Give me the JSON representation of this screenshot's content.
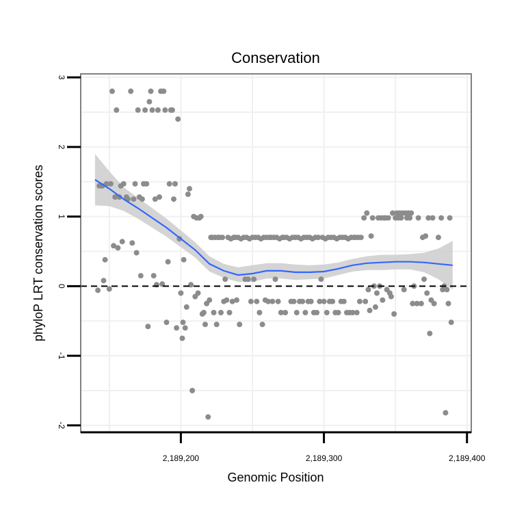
{
  "chart_data": {
    "type": "scatter",
    "title": "Conservation",
    "xlabel": "Genomic Position",
    "ylabel": "phyloP LRT conservation scores",
    "xlim": [
      2189130,
      2189403
    ],
    "ylim": [
      -2.1,
      3.05
    ],
    "x_ticks": [
      {
        "value": 2189200,
        "label": "2,189,200"
      },
      {
        "value": 2189300,
        "label": "2,189,300"
      },
      {
        "value": 2189400,
        "label": "2,189,400"
      }
    ],
    "y_ticks": [
      {
        "value": -2,
        "label": "-2"
      },
      {
        "value": -1,
        "label": "-1"
      },
      {
        "value": 0,
        "label": "0"
      },
      {
        "value": 1,
        "label": "1"
      },
      {
        "value": 2,
        "label": "2"
      },
      {
        "value": 3,
        "label": "3"
      }
    ],
    "reference_line": {
      "y": 0,
      "style": "dashed"
    },
    "colors": {
      "points": "#8c8c8c",
      "smooth": "#3366ff",
      "ribbon": "#cccccc",
      "grid": "#f0f0f0",
      "border": "#808080"
    },
    "series": [
      {
        "name": "scores",
        "points": [
          [
            2189142,
            -0.06
          ],
          [
            2189143,
            1.44
          ],
          [
            2189145,
            1.44
          ],
          [
            2189146,
            0.08
          ],
          [
            2189147,
            0.38
          ],
          [
            2189148,
            1.47
          ],
          [
            2189150,
            -0.04
          ],
          [
            2189151,
            1.47
          ],
          [
            2189152,
            2.8
          ],
          [
            2189153,
            0.58
          ],
          [
            2189154,
            1.28
          ],
          [
            2189155,
            2.53
          ],
          [
            2189156,
            0.55
          ],
          [
            2189157,
            1.28
          ],
          [
            2189158,
            1.44
          ],
          [
            2189159,
            0.64
          ],
          [
            2189160,
            1.47
          ],
          [
            2189162,
            1.28
          ],
          [
            2189163,
            1.25
          ],
          [
            2189165,
            2.8
          ],
          [
            2189166,
            0.62
          ],
          [
            2189167,
            1.25
          ],
          [
            2189168,
            1.47
          ],
          [
            2189169,
            0.48
          ],
          [
            2189170,
            2.53
          ],
          [
            2189171,
            1.28
          ],
          [
            2189172,
            0.15
          ],
          [
            2189173,
            1.25
          ],
          [
            2189174,
            1.47
          ],
          [
            2189175,
            2.53
          ],
          [
            2189176,
            1.47
          ],
          [
            2189177,
            -0.58
          ],
          [
            2189178,
            2.65
          ],
          [
            2189179,
            2.8
          ],
          [
            2189180,
            2.53
          ],
          [
            2189181,
            0.15
          ],
          [
            2189182,
            1.25
          ],
          [
            2189183,
            0.02
          ],
          [
            2189184,
            2.53
          ],
          [
            2189185,
            1.28
          ],
          [
            2189186,
            2.8
          ],
          [
            2189187,
            0.03
          ],
          [
            2189188,
            2.8
          ],
          [
            2189189,
            2.53
          ],
          [
            2189190,
            -0.52
          ],
          [
            2189191,
            0.35
          ],
          [
            2189192,
            1.47
          ],
          [
            2189193,
            2.53
          ],
          [
            2189194,
            2.53
          ],
          [
            2189195,
            1.25
          ],
          [
            2189196,
            1.47
          ],
          [
            2189197,
            -0.6
          ],
          [
            2189198,
            2.4
          ],
          [
            2189199,
            0.68
          ],
          [
            2189200,
            -0.1
          ],
          [
            2189201,
            -0.75
          ],
          [
            2189201.5,
            -0.52
          ],
          [
            2189202,
            0.38
          ],
          [
            2189203,
            -0.6
          ],
          [
            2189204,
            -0.3
          ],
          [
            2189205,
            1.32
          ],
          [
            2189206,
            1.4
          ],
          [
            2189207,
            0.02
          ],
          [
            2189208,
            -1.5
          ],
          [
            2189209,
            1.0
          ],
          [
            2189210,
            -0.15
          ],
          [
            2189211,
            0.98
          ],
          [
            2189212,
            -0.1
          ],
          [
            2189213,
            0.98
          ],
          [
            2189214,
            1.0
          ],
          [
            2189215,
            -0.4
          ],
          [
            2189216,
            -0.38
          ],
          [
            2189217,
            -0.55
          ],
          [
            2189218,
            -0.25
          ],
          [
            2189219,
            -1.88
          ],
          [
            2189220,
            -0.2
          ],
          [
            2189221,
            0.7
          ],
          [
            2189222,
            0.7
          ],
          [
            2189223,
            -0.38
          ],
          [
            2189224,
            0.7
          ],
          [
            2189225,
            -0.55
          ],
          [
            2189226,
            0.7
          ],
          [
            2189227,
            0.7
          ],
          [
            2189228,
            -0.38
          ],
          [
            2189229,
            0.7
          ],
          [
            2189230,
            -0.22
          ],
          [
            2189231,
            0.1
          ],
          [
            2189232,
            -0.2
          ],
          [
            2189233,
            0.7
          ],
          [
            2189234,
            -0.38
          ],
          [
            2189235,
            0.68
          ],
          [
            2189236,
            -0.22
          ],
          [
            2189237,
            0.7
          ],
          [
            2189238,
            0.7
          ],
          [
            2189239,
            -0.2
          ],
          [
            2189240,
            0.7
          ],
          [
            2189241,
            -0.55
          ],
          [
            2189242,
            0.68
          ],
          [
            2189244,
            0.7
          ],
          [
            2189245,
            0.1
          ],
          [
            2189246,
            0.7
          ],
          [
            2189247,
            0.1
          ],
          [
            2189248,
            0.68
          ],
          [
            2189249,
            -0.22
          ],
          [
            2189250,
            0.7
          ],
          [
            2189251,
            0.1
          ],
          [
            2189252,
            0.7
          ],
          [
            2189253,
            -0.22
          ],
          [
            2189254,
            0.7
          ],
          [
            2189255,
            -0.38
          ],
          [
            2189256,
            0.68
          ],
          [
            2189257,
            -0.55
          ],
          [
            2189258,
            0.7
          ],
          [
            2189259,
            -0.2
          ],
          [
            2189260,
            0.7
          ],
          [
            2189261,
            -0.22
          ],
          [
            2189262,
            0.7
          ],
          [
            2189263,
            0.7
          ],
          [
            2189264,
            -0.22
          ],
          [
            2189265,
            0.7
          ],
          [
            2189266,
            0.1
          ],
          [
            2189267,
            0.7
          ],
          [
            2189268,
            -0.22
          ],
          [
            2189269,
            0.68
          ],
          [
            2189270,
            -0.38
          ],
          [
            2189271,
            0.7
          ],
          [
            2189272,
            0.7
          ],
          [
            2189273,
            -0.38
          ],
          [
            2189274,
            0.7
          ],
          [
            2189276,
            0.68
          ],
          [
            2189277,
            -0.22
          ],
          [
            2189278,
            0.7
          ],
          [
            2189279,
            -0.22
          ],
          [
            2189280,
            0.7
          ],
          [
            2189281,
            -0.38
          ],
          [
            2189282,
            0.7
          ],
          [
            2189283,
            -0.22
          ],
          [
            2189284,
            0.68
          ],
          [
            2189285,
            -0.22
          ],
          [
            2189286,
            0.7
          ],
          [
            2189287,
            -0.38
          ],
          [
            2189288,
            0.7
          ],
          [
            2189289,
            -0.22
          ],
          [
            2189290,
            0.7
          ],
          [
            2189291,
            -0.22
          ],
          [
            2189292,
            0.68
          ],
          [
            2189293,
            -0.38
          ],
          [
            2189294,
            0.7
          ],
          [
            2189295,
            -0.38
          ],
          [
            2189296,
            0.7
          ],
          [
            2189297,
            -0.22
          ],
          [
            2189298,
            0.1
          ],
          [
            2189299,
            0.7
          ],
          [
            2189300,
            -0.22
          ],
          [
            2189301,
            0.68
          ],
          [
            2189302,
            -0.38
          ],
          [
            2189303,
            0.7
          ],
          [
            2189304,
            -0.22
          ],
          [
            2189305,
            0.7
          ],
          [
            2189306,
            -0.22
          ],
          [
            2189307,
            0.7
          ],
          [
            2189308,
            -0.38
          ],
          [
            2189309,
            0.68
          ],
          [
            2189310,
            -0.38
          ],
          [
            2189311,
            0.7
          ],
          [
            2189312,
            -0.22
          ],
          [
            2189313,
            0.7
          ],
          [
            2189314,
            -0.22
          ],
          [
            2189315,
            0.7
          ],
          [
            2189316,
            -0.38
          ],
          [
            2189317,
            0.68
          ],
          [
            2189318,
            -0.38
          ],
          [
            2189319,
            0.7
          ],
          [
            2189320,
            -0.38
          ],
          [
            2189321,
            0.7
          ],
          [
            2189322,
            0.7
          ],
          [
            2189323,
            -0.38
          ],
          [
            2189324,
            0.7
          ],
          [
            2189325,
            -0.22
          ],
          [
            2189326,
            0.7
          ],
          [
            2189328,
            0.98
          ],
          [
            2189329,
            -0.22
          ],
          [
            2189330,
            1.05
          ],
          [
            2189331,
            -0.05
          ],
          [
            2189332,
            -0.35
          ],
          [
            2189333,
            0.72
          ],
          [
            2189334,
            0.98
          ],
          [
            2189335,
            0.0
          ],
          [
            2189336,
            -0.3
          ],
          [
            2189337,
            -0.1
          ],
          [
            2189338,
            0.98
          ],
          [
            2189339,
            0.0
          ],
          [
            2189340,
            0.98
          ],
          [
            2189341,
            -0.2
          ],
          [
            2189342,
            0.98
          ],
          [
            2189343,
            0.98
          ],
          [
            2189344,
            -0.05
          ],
          [
            2189345,
            0.98
          ],
          [
            2189346,
            -0.1
          ],
          [
            2189347,
            -0.15
          ],
          [
            2189348,
            1.05
          ],
          [
            2189349,
            -0.4
          ],
          [
            2189350,
            0.98
          ],
          [
            2189351,
            1.05
          ],
          [
            2189352,
            0.98
          ],
          [
            2189353,
            1.05
          ],
          [
            2189354,
            0.98
          ],
          [
            2189355,
            1.05
          ],
          [
            2189356,
            -0.05
          ],
          [
            2189357,
            1.05
          ],
          [
            2189358,
            0.98
          ],
          [
            2189359,
            1.05
          ],
          [
            2189360,
            0.98
          ],
          [
            2189361,
            1.05
          ],
          [
            2189362,
            -0.25
          ],
          [
            2189363,
            0.0
          ],
          [
            2189365,
            -0.25
          ],
          [
            2189366,
            0.98
          ],
          [
            2189368,
            -0.25
          ],
          [
            2189369,
            0.7
          ],
          [
            2189370,
            0.1
          ],
          [
            2189371,
            0.72
          ],
          [
            2189372,
            -0.1
          ],
          [
            2189373,
            0.98
          ],
          [
            2189374,
            -0.68
          ],
          [
            2189375,
            -0.2
          ],
          [
            2189376,
            0.98
          ],
          [
            2189377,
            -0.25
          ],
          [
            2189380,
            0.7
          ],
          [
            2189382,
            0.98
          ],
          [
            2189383,
            -0.05
          ],
          [
            2189384,
            0.0
          ],
          [
            2189385,
            -1.82
          ],
          [
            2189386,
            -0.05
          ],
          [
            2189387,
            -0.25
          ],
          [
            2189388,
            0.98
          ],
          [
            2189389,
            -0.52
          ]
        ]
      }
    ],
    "smooth_fit": {
      "name": "loess fit",
      "x": [
        2189140,
        2189150,
        2189160,
        2189170,
        2189180,
        2189190,
        2189200,
        2189210,
        2189220,
        2189230,
        2189240,
        2189250,
        2189260,
        2189270,
        2189280,
        2189290,
        2189300,
        2189310,
        2189320,
        2189330,
        2189340,
        2189350,
        2189360,
        2189370,
        2189380,
        2189390
      ],
      "y": [
        1.53,
        1.4,
        1.25,
        1.12,
        0.98,
        0.84,
        0.68,
        0.52,
        0.32,
        0.22,
        0.16,
        0.18,
        0.22,
        0.22,
        0.2,
        0.2,
        0.21,
        0.25,
        0.3,
        0.33,
        0.34,
        0.35,
        0.35,
        0.34,
        0.32,
        0.3
      ],
      "upper": [
        1.9,
        1.65,
        1.42,
        1.27,
        1.12,
        0.97,
        0.8,
        0.63,
        0.43,
        0.32,
        0.27,
        0.3,
        0.33,
        0.33,
        0.31,
        0.3,
        0.31,
        0.34,
        0.39,
        0.43,
        0.45,
        0.45,
        0.46,
        0.48,
        0.54,
        0.65
      ],
      "lower": [
        1.16,
        1.15,
        1.08,
        0.97,
        0.84,
        0.71,
        0.56,
        0.41,
        0.21,
        0.12,
        0.06,
        0.06,
        0.11,
        0.11,
        0.09,
        0.1,
        0.11,
        0.16,
        0.21,
        0.23,
        0.23,
        0.24,
        0.24,
        0.2,
        0.1,
        -0.05
      ]
    }
  }
}
